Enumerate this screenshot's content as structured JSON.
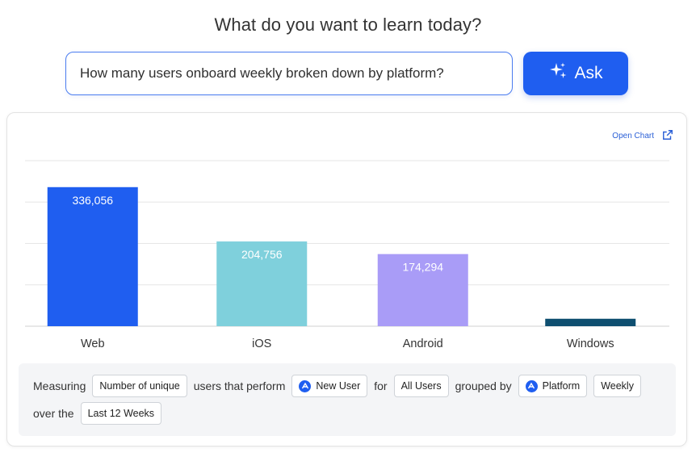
{
  "header": {
    "title": "What do you want to learn today?"
  },
  "search": {
    "value": "How many users onboard weekly broken down by platform?",
    "ask_label": "Ask"
  },
  "card": {
    "open_chart_label": "Open Chart"
  },
  "chart_data": {
    "type": "bar",
    "categories": [
      "Web",
      "iOS",
      "Android",
      "Windows"
    ],
    "values": [
      336056,
      204756,
      174294,
      18000
    ],
    "data_labels": [
      "336,056",
      "204,756",
      "174,294",
      ""
    ],
    "colors": [
      "#1f5ef0",
      "#7fd0dc",
      "#a99cf7",
      "#0e4f70"
    ],
    "ylim": [
      0,
      400000
    ],
    "grid": true,
    "title": "",
    "xlabel": "",
    "ylabel": ""
  },
  "query": {
    "measuring": "Measuring",
    "metric": "Number of unique",
    "users_perform": "users that perform",
    "event": "New User",
    "for": "for",
    "segment": "All Users",
    "grouped_by": "grouped by",
    "group": "Platform",
    "interval": "Weekly",
    "over_the": "over the",
    "range": "Last 12 Weeks"
  },
  "colors": {
    "accent": "#1f5ef0",
    "link": "#2a5fd6"
  },
  "icons": {
    "ask": "sparkle-icon",
    "open_chart": "external-link-icon",
    "event": "amplitude-logo-icon"
  }
}
